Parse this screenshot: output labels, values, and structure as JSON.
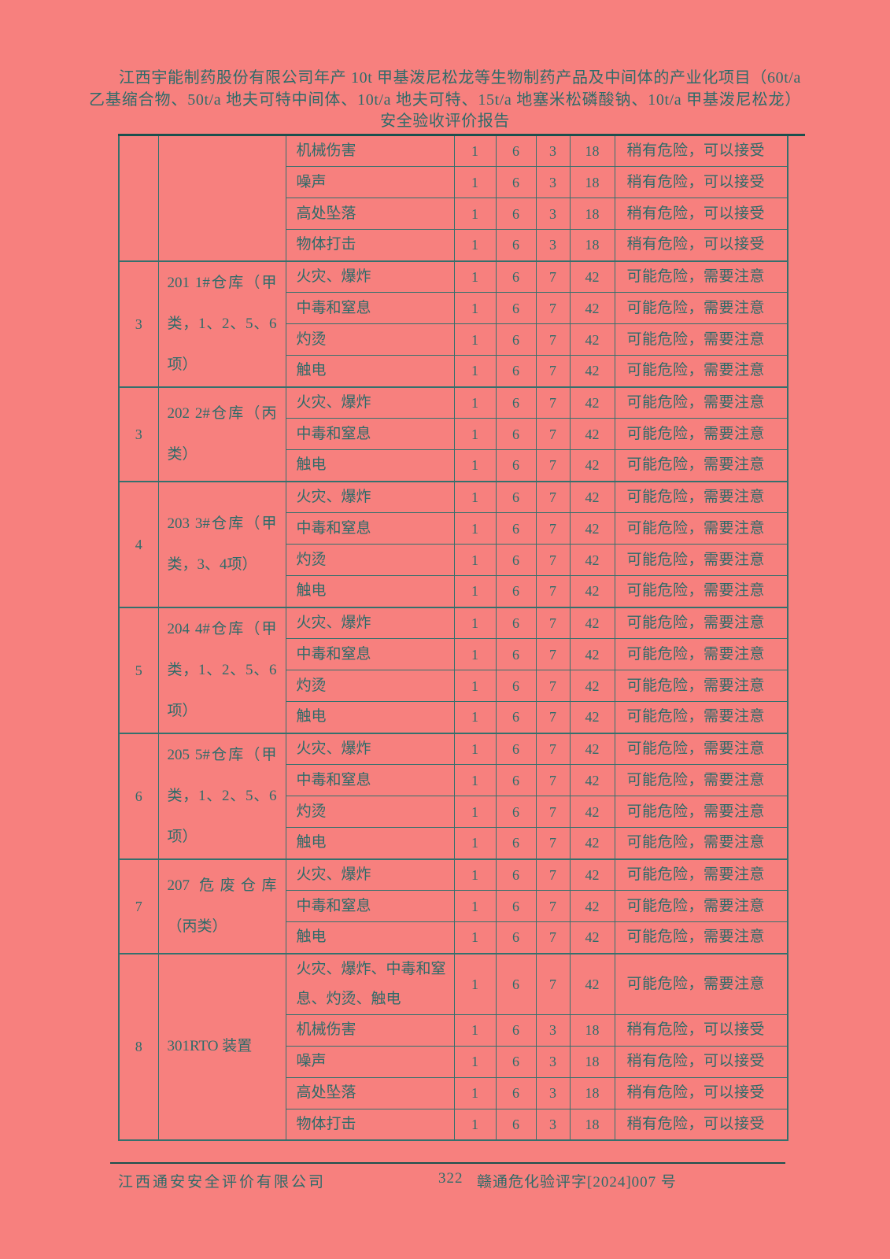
{
  "colors": {
    "background": "#f7807e",
    "text": "#2e6b69",
    "table_border": "#35706d",
    "rule": "#1c504d"
  },
  "header": {
    "title": "江西宇能制药股份有限公司年产 10t 甲基泼尼松龙等生物制药产品及中间体的产业化项目（60t/a 乙基缩合物、50t/a 地夫可特中间体、10t/a 地夫可特、15t/a 地塞米松磷酸钠、10t/a 甲基泼尼松龙）安全验收评价报告"
  },
  "table": {
    "groups": [
      {
        "no": "",
        "location": "",
        "rows": [
          {
            "hazard": "机械伤害",
            "l": "1",
            "e": "6",
            "c": "3",
            "d": "18",
            "risk": "稍有危险，可以接受"
          },
          {
            "hazard": "噪声",
            "l": "1",
            "e": "6",
            "c": "3",
            "d": "18",
            "risk": "稍有危险，可以接受"
          },
          {
            "hazard": "高处坠落",
            "l": "1",
            "e": "6",
            "c": "3",
            "d": "18",
            "risk": "稍有危险，可以接受"
          },
          {
            "hazard": "物体打击",
            "l": "1",
            "e": "6",
            "c": "3",
            "d": "18",
            "risk": "稍有危险，可以接受"
          }
        ]
      },
      {
        "no": "3",
        "location": "201 1#仓库（甲类，1、2、5、6项）",
        "rows": [
          {
            "hazard": "火灾、爆炸",
            "l": "1",
            "e": "6",
            "c": "7",
            "d": "42",
            "risk": "可能危险，需要注意"
          },
          {
            "hazard": "中毒和窒息",
            "l": "1",
            "e": "6",
            "c": "7",
            "d": "42",
            "risk": "可能危险，需要注意"
          },
          {
            "hazard": "灼烫",
            "l": "1",
            "e": "6",
            "c": "7",
            "d": "42",
            "risk": "可能危险，需要注意"
          },
          {
            "hazard": "触电",
            "l": "1",
            "e": "6",
            "c": "7",
            "d": "42",
            "risk": "可能危险，需要注意"
          }
        ]
      },
      {
        "no": "3",
        "location": "202 2#仓库（丙类）",
        "rows": [
          {
            "hazard": "火灾、爆炸",
            "l": "1",
            "e": "6",
            "c": "7",
            "d": "42",
            "risk": "可能危险，需要注意"
          },
          {
            "hazard": "中毒和窒息",
            "l": "1",
            "e": "6",
            "c": "7",
            "d": "42",
            "risk": "可能危险，需要注意"
          },
          {
            "hazard": "触电",
            "l": "1",
            "e": "6",
            "c": "7",
            "d": "42",
            "risk": "可能危险，需要注意"
          }
        ]
      },
      {
        "no": "4",
        "location": "203 3#仓库（甲类，3、4项）",
        "rows": [
          {
            "hazard": "火灾、爆炸",
            "l": "1",
            "e": "6",
            "c": "7",
            "d": "42",
            "risk": "可能危险，需要注意"
          },
          {
            "hazard": "中毒和窒息",
            "l": "1",
            "e": "6",
            "c": "7",
            "d": "42",
            "risk": "可能危险，需要注意"
          },
          {
            "hazard": "灼烫",
            "l": "1",
            "e": "6",
            "c": "7",
            "d": "42",
            "risk": "可能危险，需要注意"
          },
          {
            "hazard": "触电",
            "l": "1",
            "e": "6",
            "c": "7",
            "d": "42",
            "risk": "可能危险，需要注意"
          }
        ]
      },
      {
        "no": "5",
        "location": "204 4#仓库（甲类，1、2、5、6项）",
        "rows": [
          {
            "hazard": "火灾、爆炸",
            "l": "1",
            "e": "6",
            "c": "7",
            "d": "42",
            "risk": "可能危险，需要注意"
          },
          {
            "hazard": "中毒和窒息",
            "l": "1",
            "e": "6",
            "c": "7",
            "d": "42",
            "risk": "可能危险，需要注意"
          },
          {
            "hazard": "灼烫",
            "l": "1",
            "e": "6",
            "c": "7",
            "d": "42",
            "risk": "可能危险，需要注意"
          },
          {
            "hazard": "触电",
            "l": "1",
            "e": "6",
            "c": "7",
            "d": "42",
            "risk": "可能危险，需要注意"
          }
        ]
      },
      {
        "no": "6",
        "location": "205 5#仓库（甲类，1、2、5、6项）",
        "rows": [
          {
            "hazard": "火灾、爆炸",
            "l": "1",
            "e": "6",
            "c": "7",
            "d": "42",
            "risk": "可能危险，需要注意"
          },
          {
            "hazard": "中毒和窒息",
            "l": "1",
            "e": "6",
            "c": "7",
            "d": "42",
            "risk": "可能危险，需要注意"
          },
          {
            "hazard": "灼烫",
            "l": "1",
            "e": "6",
            "c": "7",
            "d": "42",
            "risk": "可能危险，需要注意"
          },
          {
            "hazard": "触电",
            "l": "1",
            "e": "6",
            "c": "7",
            "d": "42",
            "risk": "可能危险，需要注意"
          }
        ]
      },
      {
        "no": "7",
        "location": "207 危废仓库（丙类）",
        "rows": [
          {
            "hazard": "火灾、爆炸",
            "l": "1",
            "e": "6",
            "c": "7",
            "d": "42",
            "risk": "可能危险，需要注意"
          },
          {
            "hazard": "中毒和窒息",
            "l": "1",
            "e": "6",
            "c": "7",
            "d": "42",
            "risk": "可能危险，需要注意"
          },
          {
            "hazard": "触电",
            "l": "1",
            "e": "6",
            "c": "7",
            "d": "42",
            "risk": "可能危险，需要注意"
          }
        ]
      },
      {
        "no": "8",
        "location": "301RTO 装置",
        "rows": [
          {
            "hazard": "火灾、爆炸、中毒和窒息、灼烫、触电",
            "l": "1",
            "e": "6",
            "c": "7",
            "d": "42",
            "risk": "可能危险，需要注意"
          },
          {
            "hazard": "机械伤害",
            "l": "1",
            "e": "6",
            "c": "3",
            "d": "18",
            "risk": "稍有危险，可以接受"
          },
          {
            "hazard": "噪声",
            "l": "1",
            "e": "6",
            "c": "3",
            "d": "18",
            "risk": "稍有危险，可以接受"
          },
          {
            "hazard": "高处坠落",
            "l": "1",
            "e": "6",
            "c": "3",
            "d": "18",
            "risk": "稍有危险，可以接受"
          },
          {
            "hazard": "物体打击",
            "l": "1",
            "e": "6",
            "c": "3",
            "d": "18",
            "risk": "稍有危险，可以接受"
          }
        ]
      }
    ]
  },
  "footer": {
    "company": "江西通安安全评价有限公司",
    "page_number": "322",
    "doc_number": "赣通危化验评字[2024]007 号"
  }
}
